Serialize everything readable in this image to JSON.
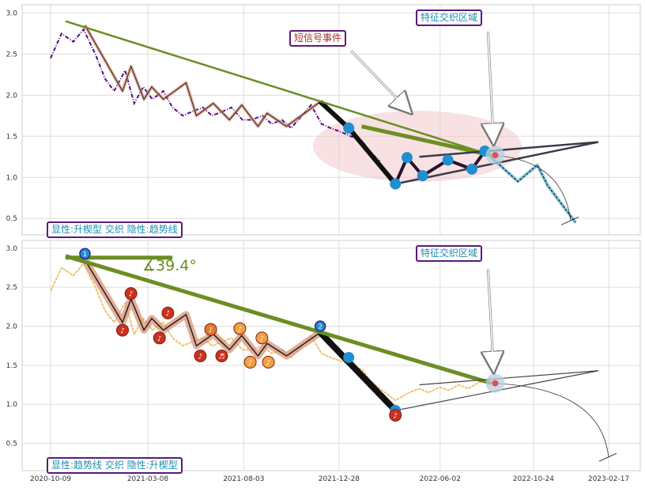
{
  "chart_data": [
    {
      "type": "line",
      "panel": "top",
      "ylim": [
        0.3,
        3.1
      ],
      "yticks": [
        "0.5",
        "1.0",
        "1.5",
        "2.0",
        "2.5",
        "3.0"
      ],
      "grid": true,
      "price_series": {
        "color": "#4b0082",
        "x": [
          "2020-10-09",
          "2020-10-26",
          "2020-11-13",
          "2020-11-29",
          "2020-12-17",
          "2021-01-01",
          "2021-01-15",
          "2021-02-01",
          "2021-02-15",
          "2021-03-01",
          "2021-03-15",
          "2021-04-01",
          "2021-04-15",
          "2021-05-01",
          "2021-05-15",
          "2021-06-01",
          "2021-06-15",
          "2021-07-01",
          "2021-07-15",
          "2021-08-01",
          "2021-08-15",
          "2021-09-01",
          "2021-09-15",
          "2021-10-01",
          "2021-10-15",
          "2021-11-01",
          "2021-11-15",
          "2021-12-01",
          "2021-12-15",
          "2022-01-01",
          "2022-01-15",
          "2022-02-01",
          "2022-02-15",
          "2022-03-01"
        ],
        "values": [
          2.45,
          2.75,
          2.65,
          2.8,
          2.5,
          2.2,
          2.05,
          2.3,
          1.9,
          2.1,
          1.95,
          2.05,
          1.85,
          1.75,
          1.8,
          1.85,
          1.75,
          1.8,
          1.85,
          1.7,
          1.7,
          1.75,
          1.65,
          1.7,
          1.6,
          1.75,
          1.88,
          1.65,
          1.6,
          1.55,
          1.5,
          1.45,
          1.3,
          1.2
        ]
      },
      "pattern_zigzag": {
        "x": [
          "2020-12-01",
          "2021-01-28",
          "2021-02-10",
          "2021-03-02",
          "2021-03-14",
          "2021-04-01",
          "2021-05-06",
          "2021-05-22",
          "2021-06-17",
          "2021-07-12",
          "2021-07-31",
          "2021-08-25",
          "2021-09-08",
          "2021-10-08",
          "2021-11-29"
        ],
        "values": [
          2.85,
          2.05,
          2.35,
          1.95,
          2.1,
          1.95,
          2.15,
          1.75,
          1.9,
          1.7,
          1.88,
          1.62,
          1.78,
          1.62,
          1.92
        ]
      },
      "trend_segment": {
        "x": [
          "2021-11-29",
          "2022-01-12",
          "2022-03-25",
          "2022-04-12",
          "2022-05-06",
          "2022-06-14",
          "2022-07-21",
          "2022-08-10"
        ],
        "values": [
          1.92,
          1.6,
          0.92,
          1.24,
          1.02,
          1.21,
          1.1,
          1.32
        ]
      },
      "projection": {
        "x": [
          "2022-08-10",
          "2022-08-26",
          "2022-09-30",
          "2022-10-30",
          "2022-11-15",
          "2022-12-28"
        ],
        "values": [
          1.32,
          1.2,
          0.95,
          1.15,
          0.9,
          0.45
        ]
      },
      "trend_line": {
        "x": [
          "2020-11-01",
          "2022-08-20"
        ],
        "values": [
          2.9,
          1.27
        ]
      },
      "wedge": {
        "x": [
          "2022-05-01",
          "2022-08-14",
          "2023-02-01"
        ],
        "values": [
          1.25,
          1.3,
          1.43
        ]
      },
      "points": [
        {
          "x": "2022-01-12",
          "value": 1.6
        },
        {
          "x": "2022-03-25",
          "value": 0.92
        },
        {
          "x": "2022-04-12",
          "value": 1.24
        },
        {
          "x": "2022-05-06",
          "value": 1.02
        },
        {
          "x": "2022-06-14",
          "value": 1.21
        },
        {
          "x": "2022-07-21",
          "value": 1.1
        },
        {
          "x": "2022-08-10",
          "value": 1.32
        }
      ],
      "annotations": {
        "feature_zone": "特征交织区域",
        "short_signal": "短信号事件",
        "legend": "显性:升楔型 交织 隐性:趋势线"
      }
    },
    {
      "type": "line",
      "panel": "bottom",
      "ylim": [
        0.15,
        3.1
      ],
      "yticks": [
        "0.5",
        "1.0",
        "1.5",
        "2.0",
        "2.5",
        "3.0"
      ],
      "xticks": [
        "2020-10-09",
        "2021-03-08",
        "2021-08-03",
        "2021-12-28",
        "2022-06-02",
        "2022-10-24",
        "2023-02-17"
      ],
      "grid": true,
      "price_series": {
        "color": "#e8b040",
        "x": [
          "2020-10-09",
          "2020-10-26",
          "2020-11-13",
          "2020-11-29",
          "2020-12-17",
          "2021-01-01",
          "2021-01-15",
          "2021-02-01",
          "2021-02-15",
          "2021-03-01",
          "2021-03-15",
          "2021-04-01",
          "2021-04-15",
          "2021-05-01",
          "2021-05-15",
          "2021-06-01",
          "2021-06-15",
          "2021-07-01",
          "2021-07-15",
          "2021-08-01",
          "2021-08-15",
          "2021-09-01",
          "2021-09-15",
          "2021-10-01",
          "2021-10-15",
          "2021-11-01",
          "2021-11-15",
          "2021-12-01",
          "2021-12-15",
          "2022-01-01",
          "2022-01-15",
          "2022-02-01",
          "2022-02-15",
          "2022-03-01",
          "2022-03-25",
          "2022-04-15",
          "2022-05-01",
          "2022-05-15",
          "2022-06-01",
          "2022-06-15",
          "2022-07-01",
          "2022-07-15",
          "2022-08-01",
          "2022-08-15"
        ],
        "values": [
          2.45,
          2.75,
          2.65,
          2.8,
          2.5,
          2.2,
          2.05,
          2.3,
          1.9,
          2.1,
          1.95,
          2.05,
          1.85,
          1.75,
          1.8,
          1.85,
          1.75,
          1.8,
          1.85,
          1.7,
          1.7,
          1.75,
          1.65,
          1.7,
          1.6,
          1.75,
          1.88,
          1.65,
          1.6,
          1.55,
          1.5,
          1.45,
          1.3,
          1.2,
          1.05,
          1.15,
          1.2,
          1.15,
          1.22,
          1.18,
          1.25,
          1.2,
          1.28,
          1.3
        ]
      },
      "pattern_zigzag": {
        "x": [
          "2020-12-01",
          "2021-01-28",
          "2021-02-10",
          "2021-03-02",
          "2021-03-14",
          "2021-04-01",
          "2021-05-06",
          "2021-05-22",
          "2021-06-17",
          "2021-07-12",
          "2021-07-31",
          "2021-08-25",
          "2021-09-08",
          "2021-10-08",
          "2021-11-29"
        ],
        "values": [
          2.85,
          2.05,
          2.35,
          1.95,
          2.1,
          1.95,
          2.15,
          1.75,
          1.9,
          1.7,
          1.88,
          1.62,
          1.78,
          1.62,
          1.92
        ]
      },
      "trend_thick": {
        "x": [
          "2021-11-29",
          "2022-03-25"
        ],
        "values": [
          1.92,
          0.92
        ]
      },
      "trend_line": {
        "x": [
          "2020-11-01",
          "2022-08-20"
        ],
        "values": [
          2.9,
          1.27
        ]
      },
      "horizontal_line": {
        "x": [
          "2020-11-01",
          "2021-04-15"
        ],
        "values": [
          2.88,
          2.88
        ]
      },
      "wedge": {
        "x": [
          "2022-05-01",
          "2022-08-14",
          "2023-02-01"
        ],
        "values": [
          1.25,
          1.3,
          1.43
        ]
      },
      "markers": [
        {
          "x": "2021-01-28",
          "value": 1.95,
          "label": "♪",
          "color": "#c8321e"
        },
        {
          "x": "2021-02-10",
          "value": 2.42,
          "label": "♪",
          "color": "#c8321e"
        },
        {
          "x": "2021-03-26",
          "value": 1.85,
          "label": "♪",
          "color": "#c8321e"
        },
        {
          "x": "2021-04-08",
          "value": 2.17,
          "label": "♪",
          "color": "#c8321e"
        },
        {
          "x": "2021-05-28",
          "value": 1.62,
          "label": "♪",
          "color": "#c8321e"
        },
        {
          "x": "2021-06-13",
          "value": 1.96,
          "label": "♪",
          "color": "#e07a2e"
        },
        {
          "x": "2021-06-30",
          "value": 1.62,
          "label": "♬",
          "color": "#c8321e"
        },
        {
          "x": "2021-07-28",
          "value": 1.97,
          "label": "♪",
          "color": "#f0a040"
        },
        {
          "x": "2021-08-13",
          "value": 1.54,
          "label": "♪",
          "color": "#f0a040"
        },
        {
          "x": "2021-08-31",
          "value": 1.85,
          "label": "♪",
          "color": "#f0a040"
        },
        {
          "x": "2021-09-10",
          "value": 1.54,
          "label": "♪",
          "color": "#f0a040"
        },
        {
          "x": "2022-03-25",
          "value": 0.86,
          "label": "♪",
          "color": "#c8321e"
        }
      ],
      "numbered_points": [
        {
          "x": "2020-12-01",
          "value": 2.93,
          "label": "1"
        },
        {
          "x": "2021-11-29",
          "value": 2.0,
          "label": "2"
        }
      ],
      "points": [
        {
          "x": "2022-01-12",
          "value": 1.6
        },
        {
          "x": "2022-03-25",
          "value": 0.92
        }
      ],
      "annotations": {
        "feature_zone": "特征交织区域",
        "angle": "∡39.4°",
        "legend": "显性:趋势线 交织 隐性:升楔型"
      }
    }
  ]
}
